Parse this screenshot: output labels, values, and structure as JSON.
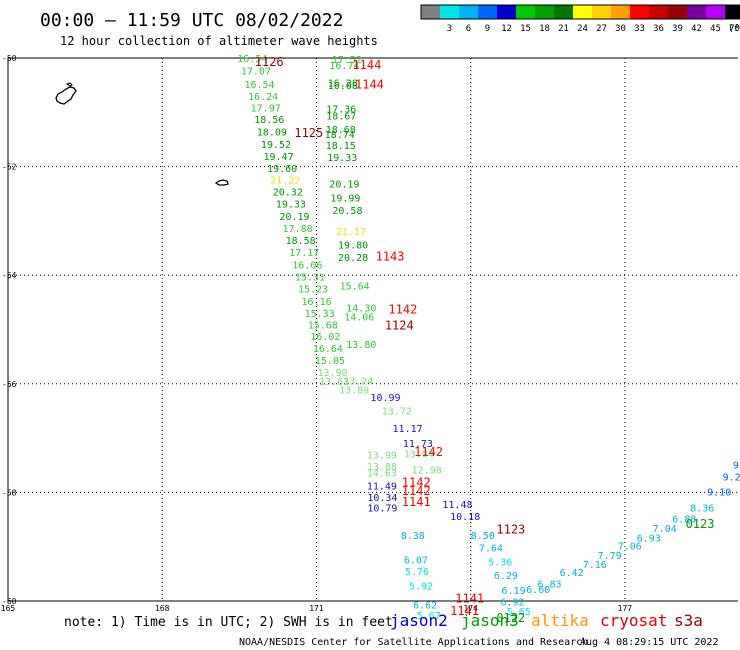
{
  "header": {
    "title": "00:00 — 11:59 UTC 08/02/2022",
    "subtitle": "12 hour collection of altimeter wave heights"
  },
  "color_scale": {
    "unit_label": "(ft)",
    "bins": [
      {
        "label": "",
        "color": "#808080"
      },
      {
        "label": "3",
        "color": "#00e5e5"
      },
      {
        "label": "6",
        "color": "#00b4f0"
      },
      {
        "label": "9",
        "color": "#0064ff"
      },
      {
        "label": "12",
        "color": "#0000c8"
      },
      {
        "label": "15",
        "color": "#00c800"
      },
      {
        "label": "18",
        "color": "#00a000"
      },
      {
        "label": "21",
        "color": "#007800"
      },
      {
        "label": "24",
        "color": "#ffff00"
      },
      {
        "label": "27",
        "color": "#ffd200"
      },
      {
        "label": "30",
        "color": "#ffa000"
      },
      {
        "label": "33",
        "color": "#ff0000"
      },
      {
        "label": "36",
        "color": "#c80000"
      },
      {
        "label": "39",
        "color": "#960000"
      },
      {
        "label": "42",
        "color": "#7800a0"
      },
      {
        "label": "45",
        "color": "#b400ff"
      },
      {
        "label": "70",
        "color": "#000000"
      }
    ]
  },
  "axes": {
    "lat_ticks": [
      {
        "value": -50,
        "label": "-50"
      },
      {
        "value": -52,
        "label": "-52"
      },
      {
        "value": -54,
        "label": "-54"
      },
      {
        "value": -56,
        "label": "-56"
      },
      {
        "value": -58,
        "label": "-58"
      },
      {
        "value": -60,
        "label": "-60"
      }
    ],
    "lon_ticks": [
      {
        "value": 165,
        "label": "165"
      },
      {
        "value": 168,
        "label": "168"
      },
      {
        "value": 171,
        "label": "171"
      },
      {
        "value": 174,
        "label": "174"
      },
      {
        "value": 177,
        "label": "177"
      }
    ],
    "lon_range": [
      165,
      179.2
    ],
    "lat_range": [
      -60,
      -50
    ],
    "grid": "dotted"
  },
  "observations": [
    {
      "lat": -50.02,
      "lon": 169.46,
      "v": "16.54",
      "c": "#32c832"
    },
    {
      "lat": -50.25,
      "lon": 169.53,
      "v": "17.07",
      "c": "#32c832"
    },
    {
      "lat": -50.5,
      "lon": 169.6,
      "v": "16.54",
      "c": "#32c832"
    },
    {
      "lat": -50.72,
      "lon": 169.67,
      "v": "16.24",
      "c": "#32c832"
    },
    {
      "lat": -50.93,
      "lon": 169.72,
      "v": "17.97",
      "c": "#32c832"
    },
    {
      "lat": -51.14,
      "lon": 169.79,
      "v": "18.56",
      "c": "#009600"
    },
    {
      "lat": -51.37,
      "lon": 169.84,
      "v": "18.09",
      "c": "#009600"
    },
    {
      "lat": -51.6,
      "lon": 169.92,
      "v": "19.52",
      "c": "#009600"
    },
    {
      "lat": -51.82,
      "lon": 169.97,
      "v": "19.47",
      "c": "#009600"
    },
    {
      "lat": -52.04,
      "lon": 170.04,
      "v": "19.60",
      "c": "#009600"
    },
    {
      "lat": -52.26,
      "lon": 170.1,
      "v": "21.22",
      "c": "#e6e600"
    },
    {
      "lat": -52.48,
      "lon": 170.15,
      "v": "20.32",
      "c": "#009600"
    },
    {
      "lat": -52.7,
      "lon": 170.21,
      "v": "19.33",
      "c": "#009600"
    },
    {
      "lat": -52.93,
      "lon": 170.28,
      "v": "20.19",
      "c": "#009600"
    },
    {
      "lat": -53.15,
      "lon": 170.34,
      "v": "17.88",
      "c": "#32c832"
    },
    {
      "lat": -53.37,
      "lon": 170.4,
      "v": "18.58",
      "c": "#009600"
    },
    {
      "lat": -53.59,
      "lon": 170.47,
      "v": "17.17",
      "c": "#32c832"
    },
    {
      "lat": -53.82,
      "lon": 170.53,
      "v": "16.06",
      "c": "#32c832"
    },
    {
      "lat": -54.04,
      "lon": 170.58,
      "v": "15.31",
      "c": "#32c832"
    },
    {
      "lat": -54.26,
      "lon": 170.64,
      "v": "15.23",
      "c": "#32c832"
    },
    {
      "lat": -54.49,
      "lon": 170.71,
      "v": "16.16",
      "c": "#32c832"
    },
    {
      "lat": -54.71,
      "lon": 170.77,
      "v": "15.33",
      "c": "#32c832"
    },
    {
      "lat": -54.93,
      "lon": 170.83,
      "v": "15.68",
      "c": "#32c832"
    },
    {
      "lat": -55.14,
      "lon": 170.88,
      "v": "16.02",
      "c": "#32c832"
    },
    {
      "lat": -55.36,
      "lon": 170.93,
      "v": "16.64",
      "c": "#32c832"
    },
    {
      "lat": -55.58,
      "lon": 170.97,
      "v": "15.05",
      "c": "#32c832"
    },
    {
      "lat": -55.8,
      "lon": 171.02,
      "v": "13.90",
      "c": "#7ddc7d"
    },
    {
      "lat": -55.97,
      "lon": 171.05,
      "v": "13.63",
      "c": "#7ddc7d"
    },
    {
      "lat": -50.04,
      "lon": 171.3,
      "v": "17.52",
      "c": "#32c832"
    },
    {
      "lat": -50.15,
      "lon": 171.25,
      "v": "16.74",
      "c": "#32c832"
    },
    {
      "lat": -50.47,
      "lon": 171.22,
      "v": "16.28",
      "c": "#009600"
    },
    {
      "lat": -50.52,
      "lon": 171.22,
      "v": "16.08",
      "c": "#009600"
    },
    {
      "lat": -50.95,
      "lon": 171.19,
      "v": "17.36",
      "c": "#009600"
    },
    {
      "lat": -51.08,
      "lon": 171.19,
      "v": "18.67",
      "c": "#009600"
    },
    {
      "lat": -51.33,
      "lon": 171.18,
      "v": "18.68",
      "c": "#009600"
    },
    {
      "lat": -51.42,
      "lon": 171.16,
      "v": "18.74",
      "c": "#009600"
    },
    {
      "lat": -51.62,
      "lon": 171.18,
      "v": "18.15",
      "c": "#009600"
    },
    {
      "lat": -51.84,
      "lon": 171.21,
      "v": "19.33",
      "c": "#009600"
    },
    {
      "lat": -52.33,
      "lon": 171.25,
      "v": "20.19",
      "c": "#009600"
    },
    {
      "lat": -52.59,
      "lon": 171.27,
      "v": "19.99",
      "c": "#009600"
    },
    {
      "lat": -52.82,
      "lon": 171.31,
      "v": "20.58",
      "c": "#009600"
    },
    {
      "lat": -53.2,
      "lon": 171.38,
      "v": "21.17",
      "c": "#e6e600"
    },
    {
      "lat": -53.45,
      "lon": 171.42,
      "v": "19.80",
      "c": "#009600"
    },
    {
      "lat": -53.68,
      "lon": 171.42,
      "v": "20.28",
      "c": "#009600"
    },
    {
      "lat": -54.21,
      "lon": 171.45,
      "v": "15.64",
      "c": "#32c832"
    },
    {
      "lat": -54.61,
      "lon": 171.58,
      "v": "14.30",
      "c": "#32c832"
    },
    {
      "lat": -54.78,
      "lon": 171.54,
      "v": "14.06",
      "c": "#32c832"
    },
    {
      "lat": -55.29,
      "lon": 171.58,
      "v": "13.80",
      "c": "#32c832"
    },
    {
      "lat": -55.96,
      "lon": 171.52,
      "v": "13.24",
      "c": "#7ddc7d"
    },
    {
      "lat": -56.12,
      "lon": 171.44,
      "v": "13.89",
      "c": "#7ddc7d"
    },
    {
      "lat": -56.26,
      "lon": 172.05,
      "v": "10.99",
      "c": "#1414c8"
    },
    {
      "lat": -56.51,
      "lon": 172.27,
      "v": "13.72",
      "c": "#7ddc7d"
    },
    {
      "lat": -56.83,
      "lon": 172.48,
      "v": "11.17",
      "c": "#1414c8"
    },
    {
      "lat": -57.11,
      "lon": 172.68,
      "v": "11.73",
      "c": "#1414c8"
    },
    {
      "lat": -57.32,
      "lon": 171.98,
      "v": "13.99",
      "c": "#7ddc7d"
    },
    {
      "lat": -57.53,
      "lon": 171.98,
      "v": "13.88",
      "c": "#7ddc7d"
    },
    {
      "lat": -57.65,
      "lon": 171.98,
      "v": "14.63",
      "c": "#7ddc7d"
    },
    {
      "lat": -57.89,
      "lon": 171.98,
      "v": "11.49",
      "c": "#1414c8"
    },
    {
      "lat": -57.3,
      "lon": 172.7,
      "v": "13.04",
      "c": "#7ddc7d"
    },
    {
      "lat": -57.6,
      "lon": 172.85,
      "v": "12.98",
      "c": "#7ddc7d"
    },
    {
      "lat": -58.23,
      "lon": 173.45,
      "v": "11.48",
      "c": "#1414c8"
    },
    {
      "lat": -58.45,
      "lon": 173.6,
      "v": "10.18",
      "c": "#1414c8"
    },
    {
      "lat": -58.1,
      "lon": 171.99,
      "v": "10.34",
      "c": "#1414c8"
    },
    {
      "lat": -58.3,
      "lon": 171.99,
      "v": "10.79",
      "c": "#1414c8"
    },
    {
      "lat": -58.8,
      "lon": 172.64,
      "v": "8.38",
      "c": "#00b4dc"
    },
    {
      "lat": -59.25,
      "lon": 172.7,
      "v": "6.07",
      "c": "#00b4dc"
    },
    {
      "lat": -59.47,
      "lon": 172.72,
      "v": "5.76",
      "c": "#00e5e5"
    },
    {
      "lat": -59.73,
      "lon": 172.8,
      "v": "5.92",
      "c": "#00e5e5"
    },
    {
      "lat": -60.08,
      "lon": 172.88,
      "v": "6.62",
      "c": "#00b4dc"
    },
    {
      "lat": -60.28,
      "lon": 172.95,
      "v": "5.67",
      "c": "#00e5e5"
    },
    {
      "lat": -58.8,
      "lon": 174.0,
      "v": "8.50",
      "c": "#00b4dc"
    },
    {
      "lat": -59.03,
      "lon": 174.16,
      "v": "7.64",
      "c": "#00b4dc"
    },
    {
      "lat": -59.29,
      "lon": 174.34,
      "v": "5.36",
      "c": "#00e5e5"
    },
    {
      "lat": -59.54,
      "lon": 174.45,
      "v": "6.29",
      "c": "#00b4dc"
    },
    {
      "lat": -59.82,
      "lon": 174.6,
      "v": "6.19",
      "c": "#00b4dc"
    },
    {
      "lat": -60.03,
      "lon": 174.58,
      "v": "6.92",
      "c": "#00b4dc"
    },
    {
      "lat": -60.2,
      "lon": 174.7,
      "v": "5.65",
      "c": "#00e5e5"
    },
    {
      "lat": -59.8,
      "lon": 175.08,
      "v": "6.60",
      "c": "#00b4dc"
    },
    {
      "lat": -59.7,
      "lon": 175.3,
      "v": "6.83",
      "c": "#00b4dc"
    },
    {
      "lat": -59.48,
      "lon": 175.73,
      "v": "6.42",
      "c": "#00b4dc"
    },
    {
      "lat": -59.34,
      "lon": 176.18,
      "v": "7.16",
      "c": "#00b4dc"
    },
    {
      "lat": -59.17,
      "lon": 176.47,
      "v": "7.79",
      "c": "#00b4dc"
    },
    {
      "lat": -59.0,
      "lon": 176.86,
      "v": "7.06",
      "c": "#00b4dc"
    },
    {
      "lat": -58.85,
      "lon": 177.23,
      "v": "6.93",
      "c": "#00b4dc"
    },
    {
      "lat": -58.67,
      "lon": 177.54,
      "v": "7.04",
      "c": "#00b4dc"
    },
    {
      "lat": -58.5,
      "lon": 177.92,
      "v": "6.88",
      "c": "#00b4dc"
    },
    {
      "lat": -58.3,
      "lon": 178.27,
      "v": "8.36",
      "c": "#00b4dc"
    },
    {
      "lat": -58.0,
      "lon": 178.6,
      "v": "9.10",
      "c": "#0064ff"
    },
    {
      "lat": -57.73,
      "lon": 178.9,
      "v": "9.27",
      "c": "#0064ff"
    },
    {
      "lat": -57.5,
      "lon": 179.1,
      "v": "9.28",
      "c": "#0064ff"
    },
    {
      "lat": -57.3,
      "lon": 179.28,
      "v": "9.6",
      "c": "#0064ff"
    }
  ],
  "pass_labels": [
    {
      "lat": -50.07,
      "lon": 169.8,
      "v": "1126",
      "c": "#960000"
    },
    {
      "lat": -50.13,
      "lon": 171.7,
      "v": "1144",
      "c": "#ff0000"
    },
    {
      "lat": -50.49,
      "lon": 171.75,
      "v": "1144",
      "c": "#ff0000"
    },
    {
      "lat": -51.38,
      "lon": 170.57,
      "v": "1125",
      "c": "#960000"
    },
    {
      "lat": -53.66,
      "lon": 172.15,
      "v": "1143",
      "c": "#ff0000"
    },
    {
      "lat": -54.63,
      "lon": 172.4,
      "v": "1142",
      "c": "#ff0000"
    },
    {
      "lat": -54.93,
      "lon": 172.33,
      "v": "1124",
      "c": "#960000"
    },
    {
      "lat": -57.26,
      "lon": 172.9,
      "v": "1142",
      "c": "#ff0000"
    },
    {
      "lat": -57.82,
      "lon": 172.66,
      "v": "1142",
      "c": "#ff0000"
    },
    {
      "lat": -57.97,
      "lon": 172.66,
      "v": "1142",
      "c": "#ff0000"
    },
    {
      "lat": -58.18,
      "lon": 172.66,
      "v": "1141",
      "c": "#ff0000"
    },
    {
      "lat": -58.68,
      "lon": 174.5,
      "v": "1123",
      "c": "#960000"
    },
    {
      "lat": -58.58,
      "lon": 178.18,
      "v": "0123",
      "c": "#009600"
    },
    {
      "lat": -59.95,
      "lon": 173.7,
      "v": "1141",
      "c": "#ff0000"
    },
    {
      "lat": -60.18,
      "lon": 173.6,
      "v": "1141",
      "c": "#ff0000"
    },
    {
      "lat": -60.31,
      "lon": 174.5,
      "v": "0122",
      "c": "#009600"
    }
  ],
  "footer": {
    "note": "note: 1) Time is in UTC; 2) SWH is in feet",
    "missions": [
      {
        "name": "jason2",
        "color": "#0000c8"
      },
      {
        "name": "jason3",
        "color": "#00a000"
      },
      {
        "name": "altika",
        "color": "#ff9600"
      },
      {
        "name": "cryosat",
        "color": "#e60000"
      },
      {
        "name": "s3a",
        "color": "#960000"
      }
    ],
    "credit": "NOAA/NESDIS Center for Satellite Applications and Research",
    "timestamp": "Aug  4 08:29:15 UTC 2022"
  }
}
